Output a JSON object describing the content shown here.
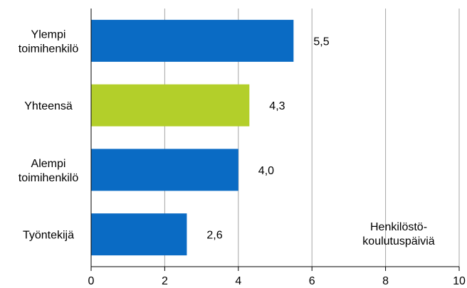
{
  "chart_data": {
    "type": "bar",
    "orientation": "horizontal",
    "categories": [
      [
        "Ylempi",
        "toimihenkilö"
      ],
      [
        "Yhteensä"
      ],
      [
        "Alempi",
        "toimihenkilö"
      ],
      [
        "Työntekijä"
      ]
    ],
    "values": [
      5.5,
      4.3,
      4.0,
      2.6
    ],
    "value_labels": [
      "5,5",
      "4,3",
      "4,0",
      "2,6"
    ],
    "bar_colors": [
      "#0a6bc4",
      "#b3cf2a",
      "#0a6bc4",
      "#0a6bc4"
    ],
    "xlim": [
      0,
      10
    ],
    "xticks": [
      0,
      2,
      4,
      6,
      8,
      10
    ],
    "xtick_labels": [
      "0",
      "2",
      "4",
      "6",
      "8",
      "10"
    ],
    "unit_label": [
      "Henkilöstö-",
      "koulutuspäiviä"
    ],
    "grid": true,
    "legend": "none"
  }
}
